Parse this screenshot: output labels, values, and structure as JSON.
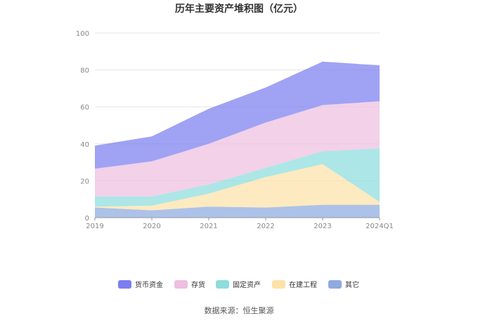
{
  "chart_data": {
    "type": "area",
    "stacked": true,
    "title": "历年主要资产堆积图（亿元）",
    "categories": [
      "2019",
      "2020",
      "2021",
      "2022",
      "2023",
      "2024Q1"
    ],
    "ylim": [
      0,
      100
    ],
    "yticks": [
      0,
      20,
      40,
      60,
      80,
      100
    ],
    "grid": true,
    "legend_position": "bottom",
    "series": [
      {
        "name": "货币资金",
        "color": "#7b7ef0",
        "values": [
          12.5,
          13.5,
          19.0,
          19.0,
          23.5,
          19.5
        ]
      },
      {
        "name": "存货",
        "color": "#edbfe0",
        "values": [
          15.0,
          19.0,
          22.0,
          24.5,
          25.0,
          25.5
        ]
      },
      {
        "name": "固定资产",
        "color": "#8edcdc",
        "values": [
          5.5,
          5.0,
          5.0,
          5.0,
          7.0,
          29.0
        ]
      },
      {
        "name": "在建工程",
        "color": "#fde2a8",
        "values": [
          0.5,
          2.5,
          7.0,
          16.5,
          22.0,
          1.5
        ]
      },
      {
        "name": "其它",
        "color": "#8eaadf",
        "values": [
          5.5,
          4.0,
          6.0,
          5.5,
          7.0,
          7.0
        ]
      }
    ]
  },
  "footer": {
    "source": "数据来源：恒生聚源"
  }
}
